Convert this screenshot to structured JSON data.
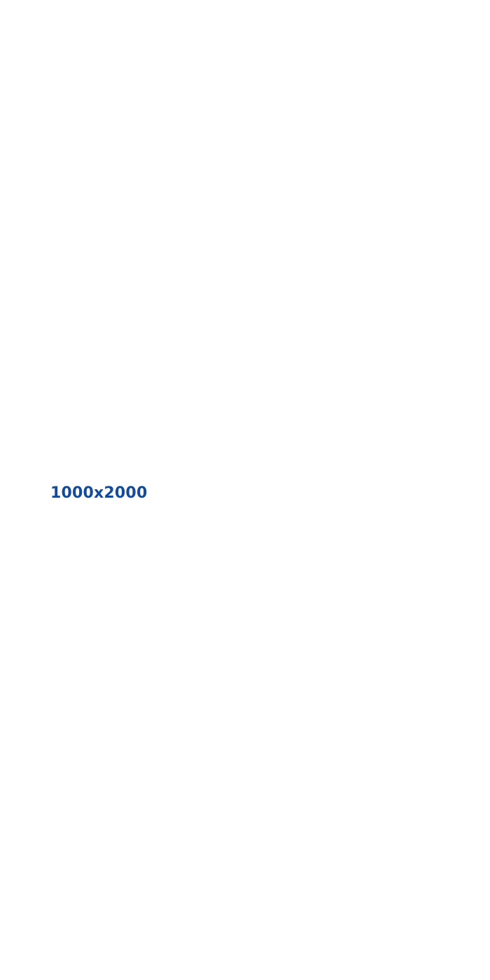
{
  "placeholder": {
    "dimensions_text": "1000x2000",
    "text_color": "#134a9a",
    "background_color": "#ffffff"
  }
}
